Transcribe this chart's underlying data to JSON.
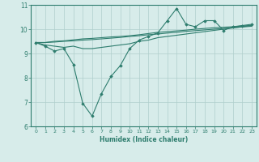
{
  "xlabel": "Humidex (Indice chaleur)",
  "x_values": [
    0,
    1,
    2,
    3,
    4,
    5,
    6,
    7,
    8,
    9,
    10,
    11,
    12,
    13,
    14,
    15,
    16,
    17,
    18,
    19,
    20,
    21,
    22,
    23
  ],
  "line1_y": [
    9.45,
    9.3,
    9.1,
    9.2,
    8.55,
    6.95,
    6.42,
    7.35,
    8.05,
    8.5,
    9.2,
    9.55,
    9.7,
    9.85,
    10.35,
    10.85,
    10.2,
    10.1,
    10.35,
    10.35,
    9.95,
    10.1,
    10.15,
    10.2
  ],
  "line2_y": [
    9.45,
    9.35,
    9.3,
    9.25,
    9.3,
    9.2,
    9.2,
    9.25,
    9.3,
    9.35,
    9.4,
    9.5,
    9.55,
    9.65,
    9.7,
    9.75,
    9.8,
    9.85,
    9.9,
    9.95,
    10.0,
    10.05,
    10.1,
    10.15
  ],
  "line3_y": [
    9.45,
    9.45,
    9.47,
    9.5,
    9.52,
    9.55,
    9.57,
    9.6,
    9.63,
    9.66,
    9.7,
    9.73,
    9.77,
    9.8,
    9.84,
    9.87,
    9.91,
    9.94,
    9.97,
    10.0,
    10.03,
    10.06,
    10.09,
    10.12
  ],
  "line4_y": [
    9.45,
    9.45,
    9.5,
    9.52,
    9.56,
    9.6,
    9.62,
    9.65,
    9.68,
    9.7,
    9.73,
    9.77,
    9.82,
    9.87,
    9.9,
    9.93,
    9.96,
    10.0,
    10.03,
    10.06,
    10.08,
    10.1,
    10.13,
    10.16
  ],
  "line_color": "#2e7d6e",
  "bg_color": "#d7ecea",
  "grid_color": "#b0cfcc",
  "ylim": [
    6,
    11
  ],
  "yticks": [
    6,
    7,
    8,
    9,
    10,
    11
  ],
  "xlim": [
    -0.5,
    23.5
  ]
}
